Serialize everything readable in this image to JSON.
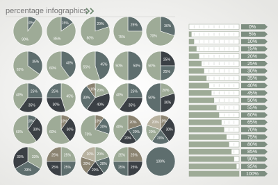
{
  "title": "percentage infographics",
  "chart_data": [
    {
      "type": "pie",
      "values": [
        10,
        90
      ],
      "value_labels": [
        "10%",
        "90%"
      ],
      "colors": [
        "#5e6e6e",
        "#9eab97"
      ]
    },
    {
      "type": "pie",
      "values": [
        15,
        85
      ],
      "value_labels": [
        "15%",
        "85%"
      ],
      "colors": [
        "#5e6e6e",
        "#9eab97"
      ]
    },
    {
      "type": "pie",
      "values": [
        20,
        80
      ],
      "value_labels": [
        "20%",
        "80%"
      ],
      "colors": [
        "#5e6e6e",
        "#9eab97"
      ]
    },
    {
      "type": "pie",
      "values": [
        25,
        75
      ],
      "value_labels": [
        "25%",
        "75%"
      ],
      "colors": [
        "#5e6e6e",
        "#9eab97"
      ]
    },
    {
      "type": "pie",
      "values": [
        30,
        70
      ],
      "value_labels": [
        "30%",
        "70%"
      ],
      "colors": [
        "#5e6e6e",
        "#9eab97"
      ]
    },
    {
      "type": "pie",
      "values": [
        35,
        65
      ],
      "value_labels": [
        "35%",
        "65%"
      ],
      "colors": [
        "#5e6e6e",
        "#9eab97"
      ]
    },
    {
      "type": "pie",
      "values": [
        40,
        60
      ],
      "value_labels": [
        "40%",
        "60%"
      ],
      "colors": [
        "#5e6e6e",
        "#9eab97"
      ]
    },
    {
      "type": "pie",
      "values": [
        45,
        55
      ],
      "value_labels": [
        "45%",
        "55%"
      ],
      "colors": [
        "#5e6e6e",
        "#9eab97"
      ]
    },
    {
      "type": "pie",
      "values": [
        50,
        50
      ],
      "value_labels": [
        "50%",
        "50%"
      ],
      "colors": [
        "#5e6e6e",
        "#9eab97"
      ]
    },
    {
      "type": "pie",
      "values": [
        25,
        25,
        50
      ],
      "value_labels": [
        "25%",
        "25%",
        "50%"
      ],
      "colors": [
        "#3b4045",
        "#5e6e6e",
        "#9eab97"
      ]
    },
    {
      "type": "pie",
      "values": [
        25,
        35,
        40
      ],
      "value_labels": [
        "25%",
        "35%",
        "40%"
      ],
      "colors": [
        "#5e6e6e",
        "#3b4045",
        "#9eab97"
      ]
    },
    {
      "type": "pie",
      "values": [
        45,
        30,
        25
      ],
      "value_labels": [
        "45%",
        "30%",
        "25%"
      ],
      "colors": [
        "#9eab97",
        "#3b4045",
        "#5e6e6e"
      ]
    },
    {
      "type": "pie",
      "values": [
        20,
        40,
        30,
        10
      ],
      "value_labels": [
        "20%",
        "40%",
        "30%",
        "10%"
      ],
      "colors": [
        "#9eab97",
        "#3b4045",
        "#5e6e6e",
        "#8c8472"
      ]
    },
    {
      "type": "pie",
      "values": [
        25,
        35,
        40
      ],
      "value_labels": [
        "25%",
        "35%",
        "40%"
      ],
      "colors": [
        "#5e6e6e",
        "#3b4045",
        "#9eab97"
      ]
    },
    {
      "type": "pie",
      "values": [
        20,
        30,
        50
      ],
      "value_labels": [
        "20%",
        "30%",
        "50%"
      ],
      "colors": [
        "#9eab97",
        "#3b4045",
        "#5e6e6e"
      ]
    },
    {
      "type": "pie",
      "values": [
        10,
        30,
        60
      ],
      "value_labels": [
        "10%",
        "30%",
        "60%"
      ],
      "colors": [
        "#5e6e6e",
        "#3b4045",
        "#9eab97"
      ]
    },
    {
      "type": "pie",
      "values": [
        10,
        30,
        60
      ],
      "value_labels": [
        "10%",
        "30%",
        "60%"
      ],
      "colors": [
        "#8c8472",
        "#3b4045",
        "#9eab97"
      ]
    },
    {
      "type": "pie",
      "values": [
        10,
        20,
        70
      ],
      "value_labels": [
        "10%",
        "20%",
        "70%"
      ],
      "colors": [
        "#8c8472",
        "#5e6e6e",
        "#9eab97"
      ]
    },
    {
      "type": "pie",
      "values": [
        20,
        20,
        20,
        40
      ],
      "value_labels": [
        "20%",
        "20%",
        "20%",
        "40%"
      ],
      "colors": [
        "#8c8472",
        "#5e6e6e",
        "#3b4045",
        "#9eab97"
      ]
    },
    {
      "type": "pie",
      "values": [
        10,
        30,
        20,
        20,
        20
      ],
      "value_labels": [
        "10%",
        "30%",
        "20%",
        "20%",
        "20%"
      ],
      "colors": [
        "#8c8472",
        "#3b4045",
        "#5e6e6e",
        "#9eab97",
        "#b8b2a0"
      ]
    },
    {
      "type": "pie",
      "values": [
        33,
        33,
        33
      ],
      "value_labels": [
        "33%",
        "33%",
        "33%"
      ],
      "colors": [
        "#9eab97",
        "#5e6e6e",
        "#3b4045"
      ]
    },
    {
      "type": "pie",
      "values": [
        25,
        25,
        25,
        25
      ],
      "value_labels": [
        "25%",
        "25%",
        "25%",
        "25%"
      ],
      "colors": [
        "#9eab97",
        "#5e6e6e",
        "#3b4045",
        "#8c8472"
      ]
    },
    {
      "type": "pie",
      "values": [
        20,
        20,
        20,
        20,
        20
      ],
      "value_labels": [
        "20%",
        "20%",
        "20%",
        "20%",
        "20%"
      ],
      "colors": [
        "#9eab97",
        "#5e6e6e",
        "#3b4045",
        "#8c8472",
        "#b8b2a0"
      ]
    },
    {
      "type": "pie",
      "values": [
        25,
        25,
        25,
        25
      ],
      "value_labels": [
        "25%",
        "25%",
        "25%",
        "25%"
      ],
      "colors": [
        "#8c8472",
        "#3b4045",
        "#5e6e6e",
        "#9eab97"
      ]
    },
    {
      "type": "pie",
      "values": [
        100
      ],
      "value_labels": [
        "100%"
      ],
      "colors": [
        "#5e6e6e"
      ]
    },
    {
      "type": "bar",
      "orientation": "horizontal",
      "xlim": [
        0,
        100
      ],
      "color": "#9eab97",
      "values": [
        0,
        5,
        10,
        15,
        20,
        25,
        30,
        35,
        40,
        45,
        50,
        55,
        60,
        65,
        70,
        75,
        80,
        85,
        90,
        95,
        100
      ],
      "value_labels": [
        "0%",
        "5%",
        "10%",
        "15%",
        "20%",
        "25%",
        "30%",
        "35%",
        "40%",
        "45%",
        "50%",
        "55%",
        "60%",
        "65%",
        "70%",
        "75%",
        "80%",
        "85%",
        "90%",
        "95%",
        "100%"
      ]
    }
  ]
}
